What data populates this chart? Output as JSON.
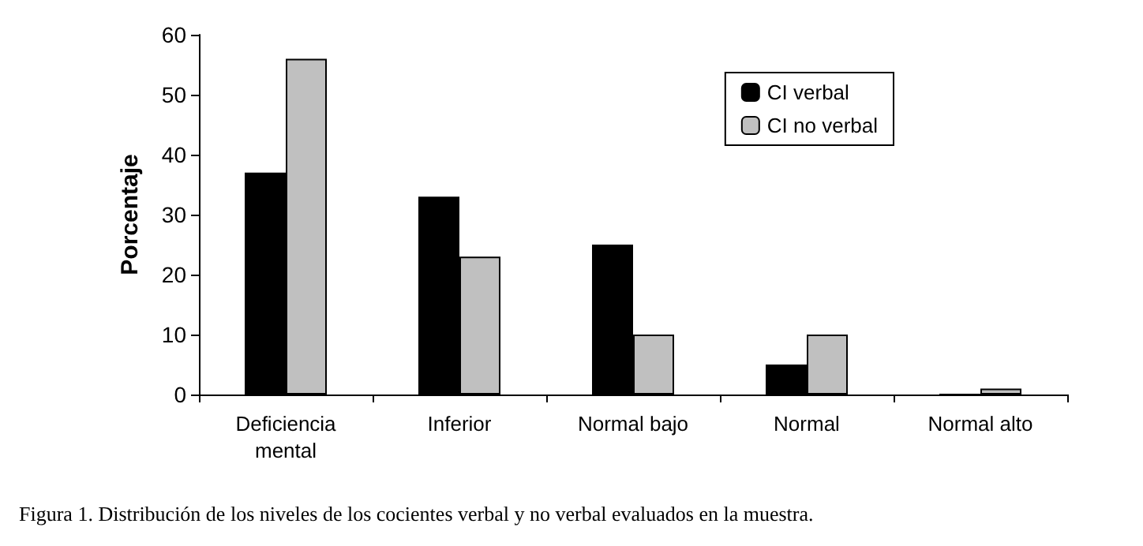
{
  "chart_data": {
    "type": "bar",
    "ylabel": "Porcentaje",
    "categories": [
      "Deficiencia\nmental",
      "Inferior",
      "Normal bajo",
      "Normal",
      "Normal alto"
    ],
    "series": [
      {
        "name": "CI verbal",
        "color": "#000000",
        "values": [
          37,
          33,
          25,
          5,
          0
        ]
      },
      {
        "name": "CI no verbal",
        "color": "#c0c0c0",
        "values": [
          56,
          23,
          10,
          10,
          1
        ]
      }
    ],
    "ylim": [
      0,
      60
    ],
    "yticks": [
      0,
      10,
      20,
      30,
      40,
      50,
      60
    ],
    "grid": false,
    "legend": "top right",
    "annotations": [
      "Figura 1. Distribución de los niveles de los cocientes verbal y no verbal evaluados en la muestra."
    ]
  }
}
